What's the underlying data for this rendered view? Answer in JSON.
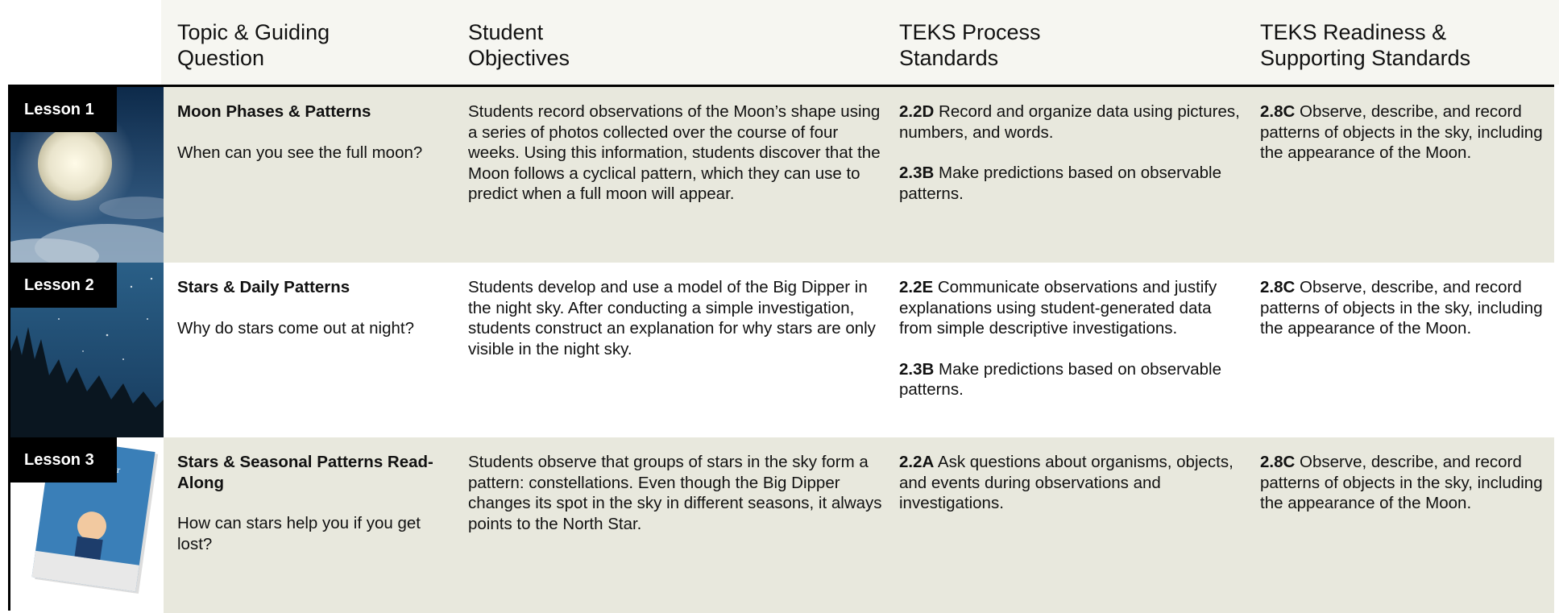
{
  "header": {
    "columns": [
      "Topic & Guiding Question",
      "Student Objectives",
      "TEKS Process Standards",
      "TEKS Readiness & Supporting Standards"
    ]
  },
  "rows": [
    {
      "lesson": "Lesson 1",
      "topic": "Moon Phases & Patterns",
      "question": "When can you see the full moon?",
      "objectives": "Students record observations of the Moon’s shape using a series of photos collected over the course of four weeks. Using this information, students discover that the Moon follows a cyclical pattern, which they can use to predict when a full moon will appear.",
      "process": [
        {
          "code": "2.2D",
          "text": "Record and organize data using pictures, numbers, and words."
        },
        {
          "code": "2.3B",
          "text": "Make predictions based on observable patterns."
        }
      ],
      "readiness": [
        {
          "code": "2.8C",
          "text": "Observe, describe, and record patterns of objects in the sky, including the appearance of the Moon."
        }
      ]
    },
    {
      "lesson": "Lesson 2",
      "topic": "Stars & Daily Patterns",
      "question": "Why do stars come out at night?",
      "objectives": "Students develop and use a model of the Big Dipper in the night sky. After conducting a simple investigation, students construct an explanation for why stars are only visible in the night sky.",
      "process": [
        {
          "code": "2.2E",
          "text": "Communicate observations and justify explanations using student-generated data from simple descriptive investigations."
        },
        {
          "code": "2.3B",
          "text": "Make predictions based on observable patterns."
        }
      ],
      "readiness": [
        {
          "code": "2.8C",
          "text": "Observe, describe, and record patterns of objects in the sky, including the appearance of the Moon."
        }
      ]
    },
    {
      "lesson": "Lesson 3",
      "topic": "Stars & Seasonal Patterns Read-Along",
      "question": "How can stars help you if you get lost?",
      "objectives": "Students observe that groups of stars in the sky form a pattern: constellations. Even though the Big Dipper changes its spot in the sky in different seasons, it always points to the North Star.",
      "process": [
        {
          "code": "2.2A",
          "text": "Ask questions about organisms, objects, and events during observations and investigations."
        }
      ],
      "readiness": [
        {
          "code": "2.8C",
          "text": "Observe, describe, and record patterns of objects in the sky, including the appearance of the Moon."
        }
      ]
    }
  ]
}
